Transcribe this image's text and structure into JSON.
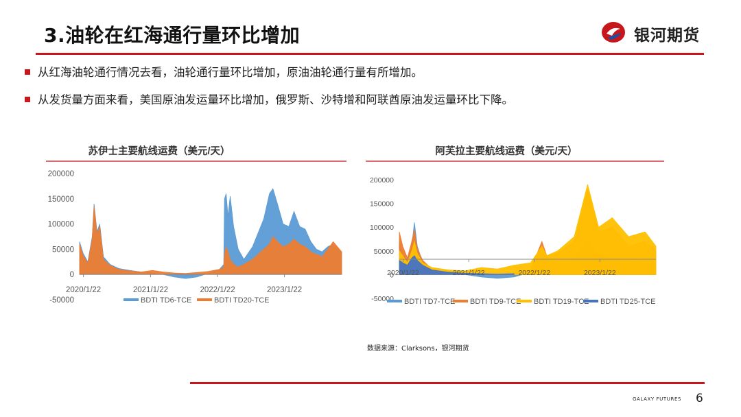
{
  "slide": {
    "title": "3.油轮在红海通行量环比增加",
    "brand": "银河期货",
    "bullets": [
      "从红海油轮通行情况去看，油轮通行量环比增加，原油油轮通行量有所增加。",
      "从发货量方面来看，美国原油发运量环比增加，俄罗斯、沙特增和阿联酋原油发运量环比下降。"
    ],
    "source": "数据来源：Clarksons，银河期货",
    "footer_brand": "GALAXY FUTURES",
    "page_number": "6"
  },
  "colors": {
    "accent_red": "#c8161d",
    "td6": "#5b9bd5",
    "td20": "#ed7d31",
    "td7": "#5b9bd5",
    "td9": "#ed7d31",
    "td19": "#ffc000",
    "td25": "#4472c4"
  },
  "chart_data": [
    {
      "type": "area",
      "title": "苏伊士主要航线运费（美元/天）",
      "xlabel": "",
      "ylabel": "",
      "ylim": [
        -50000,
        200000
      ],
      "yticks": [
        "200000",
        "150000",
        "100000",
        "50000",
        "0",
        "-50000"
      ],
      "xticks": [
        "2020/1/22",
        "2021/1/22",
        "2022/1/22",
        "2023/1/22"
      ],
      "xlim": [
        "2020/1/1",
        "2023/11/30"
      ],
      "legend_position": "bottom",
      "series": [
        {
          "name": "BDTI TD6-TCE",
          "color": "#5b9bd5",
          "points": [
            [
              "2020/1/1",
              65000
            ],
            [
              "2020/1/20",
              42000
            ],
            [
              "2020/2/15",
              25000
            ],
            [
              "2020/3/10",
              75000
            ],
            [
              "2020/3/20",
              140000
            ],
            [
              "2020/4/5",
              85000
            ],
            [
              "2020/4/20",
              100000
            ],
            [
              "2020/5/10",
              35000
            ],
            [
              "2020/6/15",
              20000
            ],
            [
              "2020/8/1",
              12000
            ],
            [
              "2020/10/1",
              8000
            ],
            [
              "2020/12/1",
              5000
            ],
            [
              "2021/2/1",
              3000
            ],
            [
              "2021/4/1",
              0
            ],
            [
              "2021/6/1",
              -5000
            ],
            [
              "2021/8/1",
              -8000
            ],
            [
              "2021/10/1",
              -5000
            ],
            [
              "2021/12/1",
              2000
            ],
            [
              "2022/2/1",
              10000
            ],
            [
              "2022/2/25",
              20000
            ],
            [
              "2022/3/1",
              150000
            ],
            [
              "2022/3/10",
              160000
            ],
            [
              "2022/3/20",
              115000
            ],
            [
              "2022/4/1",
              155000
            ],
            [
              "2022/4/20",
              95000
            ],
            [
              "2022/5/15",
              50000
            ],
            [
              "2022/6/15",
              30000
            ],
            [
              "2022/8/1",
              55000
            ],
            [
              "2022/10/1",
              110000
            ],
            [
              "2022/11/1",
              160000
            ],
            [
              "2022/11/20",
              170000
            ],
            [
              "2022/12/15",
              140000
            ],
            [
              "2023/1/15",
              100000
            ],
            [
              "2023/2/15",
              95000
            ],
            [
              "2023/3/15",
              125000
            ],
            [
              "2023/4/15",
              95000
            ],
            [
              "2023/5/15",
              90000
            ],
            [
              "2023/6/15",
              65000
            ],
            [
              "2023/7/15",
              50000
            ],
            [
              "2023/8/15",
              45000
            ],
            [
              "2023/9/15",
              55000
            ],
            [
              "2023/10/15",
              60000
            ],
            [
              "2023/11/30",
              45000
            ]
          ]
        },
        {
          "name": "BDTI TD20-TCE",
          "color": "#ed7d31",
          "points": [
            [
              "2020/1/1",
              60000
            ],
            [
              "2020/1/20",
              38000
            ],
            [
              "2020/2/15",
              22000
            ],
            [
              "2020/3/10",
              70000
            ],
            [
              "2020/3/20",
              135000
            ],
            [
              "2020/4/5",
              80000
            ],
            [
              "2020/4/20",
              95000
            ],
            [
              "2020/5/10",
              30000
            ],
            [
              "2020/6/15",
              18000
            ],
            [
              "2020/8/1",
              10000
            ],
            [
              "2020/10/1",
              7000
            ],
            [
              "2020/12/1",
              5000
            ],
            [
              "2021/2/1",
              8000
            ],
            [
              "2021/4/1",
              5000
            ],
            [
              "2021/6/1",
              3000
            ],
            [
              "2021/8/1",
              2000
            ],
            [
              "2021/10/1",
              4000
            ],
            [
              "2021/12/1",
              6000
            ],
            [
              "2022/2/1",
              10000
            ],
            [
              "2022/2/25",
              15000
            ],
            [
              "2022/3/1",
              40000
            ],
            [
              "2022/3/10",
              55000
            ],
            [
              "2022/3/20",
              45000
            ],
            [
              "2022/4/1",
              30000
            ],
            [
              "2022/4/20",
              20000
            ],
            [
              "2022/5/15",
              15000
            ],
            [
              "2022/6/15",
              20000
            ],
            [
              "2022/8/1",
              30000
            ],
            [
              "2022/10/1",
              50000
            ],
            [
              "2022/11/1",
              60000
            ],
            [
              "2022/11/20",
              75000
            ],
            [
              "2022/12/15",
              65000
            ],
            [
              "2023/1/15",
              55000
            ],
            [
              "2023/2/15",
              60000
            ],
            [
              "2023/3/15",
              70000
            ],
            [
              "2023/4/15",
              60000
            ],
            [
              "2023/5/15",
              55000
            ],
            [
              "2023/6/15",
              45000
            ],
            [
              "2023/7/15",
              40000
            ],
            [
              "2023/8/15",
              35000
            ],
            [
              "2023/9/15",
              50000
            ],
            [
              "2023/10/15",
              65000
            ],
            [
              "2023/11/30",
              45000
            ]
          ]
        }
      ]
    },
    {
      "type": "area",
      "title": "阿芙拉主要航线运费（美元/天）",
      "xlabel": "",
      "ylabel": "",
      "ylim": [
        -50000,
        200000
      ],
      "yticks": [
        "200000",
        "150000",
        "100000",
        "50000",
        "0",
        "-50000"
      ],
      "xticks": [
        "2020/1/22",
        "2021/1/22",
        "2022/1/22",
        "2023/1/22"
      ],
      "xlim": [
        "2020/1/1",
        "2023/11/30"
      ],
      "legend_position": "bottom",
      "series": [
        {
          "name": "BDTI TD7-TCE",
          "color": "#5b9bd5",
          "points": [
            [
              "2020/1/1",
              70000
            ],
            [
              "2020/1/20",
              40000
            ],
            [
              "2020/2/15",
              30000
            ],
            [
              "2020/3/10",
              60000
            ],
            [
              "2020/3/25",
              110000
            ],
            [
              "2020/4/10",
              60000
            ],
            [
              "2020/5/10",
              25000
            ],
            [
              "2020/7/1",
              10000
            ],
            [
              "2020/10/1",
              5000
            ],
            [
              "2021/1/1",
              0
            ],
            [
              "2021/4/1",
              -5000
            ],
            [
              "2021/7/1",
              -8000
            ],
            [
              "2021/10/1",
              -5000
            ],
            [
              "2022/1/1",
              5000
            ],
            [
              "2022/3/5",
              60000
            ],
            [
              "2022/4/1",
              30000
            ],
            [
              "2022/6/1",
              20000
            ],
            [
              "2022/9/1",
              35000
            ],
            [
              "2022/11/15",
              70000
            ],
            [
              "2023/1/15",
              40000
            ],
            [
              "2023/4/1",
              35000
            ],
            [
              "2023/7/1",
              25000
            ],
            [
              "2023/10/1",
              30000
            ],
            [
              "2023/11/30",
              20000
            ]
          ]
        },
        {
          "name": "BDTI TD9-TCE",
          "color": "#ed7d31",
          "points": [
            [
              "2020/1/1",
              90000
            ],
            [
              "2020/1/20",
              60000
            ],
            [
              "2020/2/15",
              35000
            ],
            [
              "2020/3/10",
              70000
            ],
            [
              "2020/3/25",
              95000
            ],
            [
              "2020/4/10",
              55000
            ],
            [
              "2020/5/10",
              30000
            ],
            [
              "2020/7/1",
              12000
            ],
            [
              "2020/10/1",
              8000
            ],
            [
              "2021/1/1",
              5000
            ],
            [
              "2021/4/1",
              3000
            ],
            [
              "2021/7/1",
              2000
            ],
            [
              "2021/10/1",
              5000
            ],
            [
              "2022/1/1",
              10000
            ],
            [
              "2022/3/5",
              70000
            ],
            [
              "2022/4/1",
              40000
            ],
            [
              "2022/6/1",
              45000
            ],
            [
              "2022/9/1",
              70000
            ],
            [
              "2022/11/15",
              180000
            ],
            [
              "2023/1/15",
              90000
            ],
            [
              "2023/4/1",
              100000
            ],
            [
              "2023/7/1",
              60000
            ],
            [
              "2023/10/1",
              70000
            ],
            [
              "2023/11/30",
              50000
            ]
          ]
        },
        {
          "name": "BDTI TD19-TCE",
          "color": "#ffc000",
          "points": [
            [
              "2020/1/1",
              50000
            ],
            [
              "2020/1/20",
              40000
            ],
            [
              "2020/2/15",
              25000
            ],
            [
              "2020/3/10",
              50000
            ],
            [
              "2020/3/25",
              70000
            ],
            [
              "2020/4/10",
              45000
            ],
            [
              "2020/5/10",
              25000
            ],
            [
              "2020/7/1",
              15000
            ],
            [
              "2020/10/1",
              10000
            ],
            [
              "2021/1/1",
              8000
            ],
            [
              "2021/4/1",
              15000
            ],
            [
              "2021/7/1",
              12000
            ],
            [
              "2021/10/1",
              20000
            ],
            [
              "2022/1/1",
              25000
            ],
            [
              "2022/3/5",
              60000
            ],
            [
              "2022/4/1",
              40000
            ],
            [
              "2022/6/1",
              50000
            ],
            [
              "2022/9/1",
              80000
            ],
            [
              "2022/11/15",
              190000
            ],
            [
              "2023/1/15",
              100000
            ],
            [
              "2023/4/1",
              120000
            ],
            [
              "2023/7/1",
              80000
            ],
            [
              "2023/10/1",
              90000
            ],
            [
              "2023/11/30",
              60000
            ]
          ]
        },
        {
          "name": "BDTI TD25-TCE",
          "color": "#4472c4",
          "points": [
            [
              "2020/1/1",
              30000
            ],
            [
              "2020/1/20",
              25000
            ],
            [
              "2020/2/15",
              20000
            ],
            [
              "2020/3/10",
              35000
            ],
            [
              "2020/3/25",
              40000
            ],
            [
              "2020/4/10",
              30000
            ],
            [
              "2020/5/10",
              20000
            ],
            [
              "2020/7/1",
              10000
            ],
            [
              "2020/10/1",
              5000
            ],
            [
              "2021/1/1",
              3000
            ],
            [
              "2021/4/1",
              2000
            ],
            [
              "2021/7/1",
              1000
            ],
            [
              "2021/10/1",
              2000
            ]
          ]
        }
      ]
    }
  ]
}
